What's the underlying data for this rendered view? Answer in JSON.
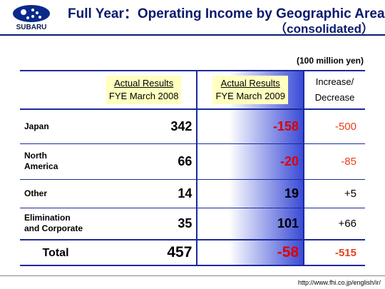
{
  "header": {
    "logo": "SUBARU",
    "title": "Full Year：Operating Income by Geographic Area",
    "subtitle": "（consolidated）"
  },
  "unit": "(100 million yen)",
  "table": {
    "columns": [
      [
        "Actual Results",
        "FYE March 2008"
      ],
      [
        "Actual Results",
        "FYE March 2009"
      ],
      [
        "Increase/",
        "Decrease"
      ]
    ],
    "rows": [
      {
        "label": [
          "Japan"
        ],
        "values": [
          "342",
          "-158",
          "-500"
        ]
      },
      {
        "label": [
          "North",
          "America"
        ],
        "values": [
          "66",
          "-20",
          "-85"
        ]
      },
      {
        "label": [
          "Other"
        ],
        "values": [
          "14",
          "19",
          "+5"
        ]
      },
      {
        "label": [
          "Elimination",
          "and Corporate"
        ],
        "values": [
          "35",
          "101",
          "+66"
        ]
      }
    ],
    "total": {
      "label": "Total",
      "values": [
        "457",
        "-58",
        "-515"
      ]
    }
  },
  "footer": {
    "url": "http://www.fhi.co.jp/english/ir/"
  }
}
